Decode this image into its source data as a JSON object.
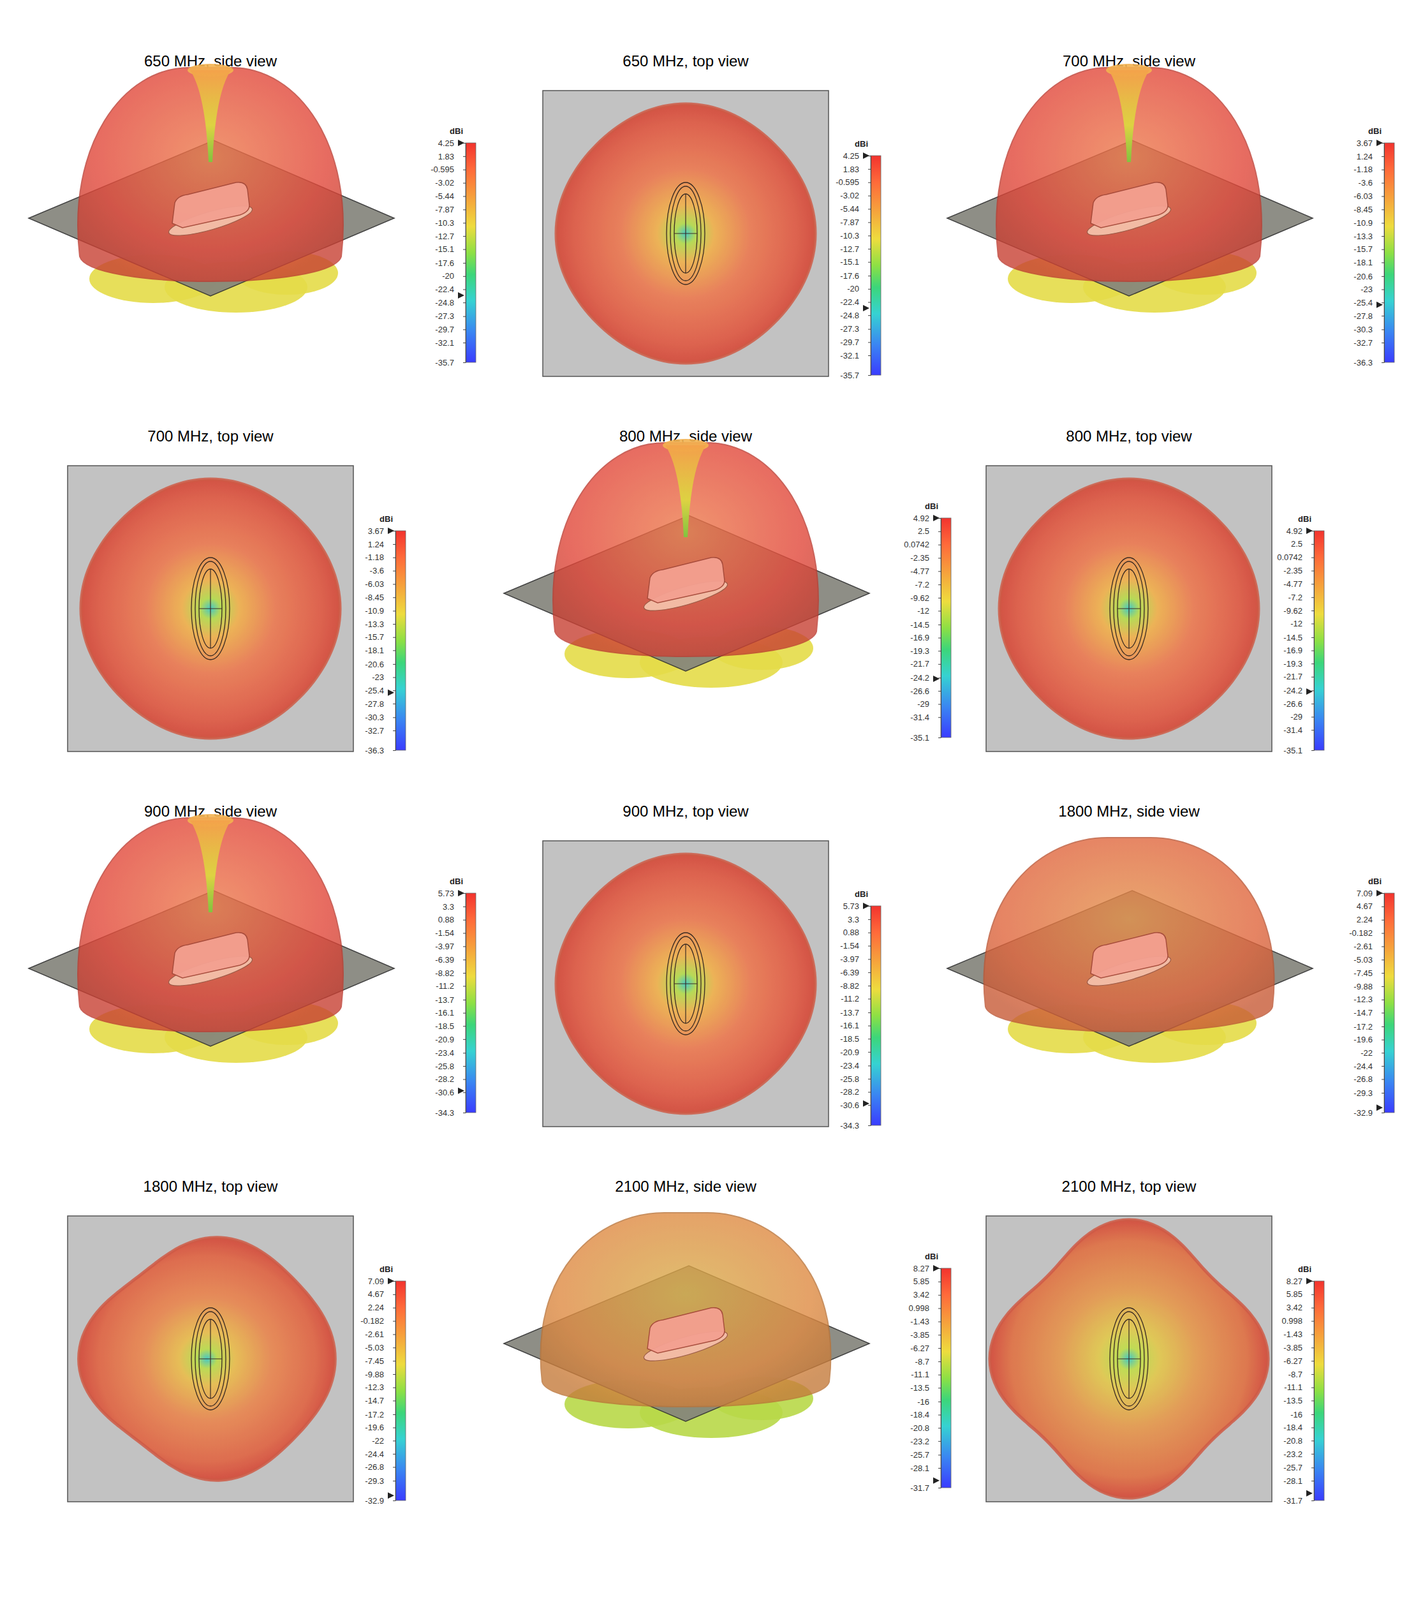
{
  "chart_data": [
    {
      "type": "radiation_3d_side",
      "title": "650 MHz, side view",
      "colorbar_title": "dBi",
      "colorbar_range": [
        -35.7,
        4.25
      ],
      "colorbar_ticks": [
        4.25,
        1.83,
        -0.595,
        -3.02,
        -5.44,
        -7.87,
        -10.3,
        -12.7,
        -15.1,
        -17.6,
        -20,
        -22.4,
        -24.8,
        -27.3,
        -29.7,
        -32.1,
        -35.7
      ],
      "colorbar_markers": [
        4.25,
        -23.5
      ]
    },
    {
      "type": "radiation_3d_top",
      "title": "650 MHz, top view",
      "colorbar_title": "dBi",
      "colorbar_range": [
        -35.7,
        4.25
      ],
      "colorbar_ticks": [
        4.25,
        1.83,
        -0.595,
        -3.02,
        -5.44,
        -7.87,
        -10.3,
        -12.7,
        -15.1,
        -17.6,
        -20,
        -22.4,
        -24.8,
        -27.3,
        -29.7,
        -32.1,
        -35.7
      ],
      "colorbar_markers": [
        4.25,
        -23.5
      ]
    },
    {
      "type": "radiation_3d_side",
      "title": "700 MHz, side view",
      "colorbar_title": "dBi",
      "colorbar_range": [
        -36.3,
        3.67
      ],
      "colorbar_ticks": [
        3.67,
        1.24,
        -1.18,
        -3.6,
        -6.03,
        -8.45,
        -10.9,
        -13.3,
        -15.7,
        -18.1,
        -20.6,
        -23,
        -25.4,
        -27.8,
        -30.3,
        -32.7,
        -36.3
      ],
      "colorbar_markers": [
        3.67,
        -25.8
      ]
    },
    {
      "type": "radiation_3d_top",
      "title": "700 MHz, top view",
      "colorbar_title": "dBi",
      "colorbar_range": [
        -36.3,
        3.67
      ],
      "colorbar_ticks": [
        3.67,
        1.24,
        -1.18,
        -3.6,
        -6.03,
        -8.45,
        -10.9,
        -13.3,
        -15.7,
        -18.1,
        -20.6,
        -23,
        -25.4,
        -27.8,
        -30.3,
        -32.7,
        -36.3
      ],
      "colorbar_markers": [
        3.67,
        -25.8
      ]
    },
    {
      "type": "radiation_3d_side",
      "title": "800 MHz, side view",
      "colorbar_title": "dBi",
      "colorbar_range": [
        -35.1,
        4.92
      ],
      "colorbar_ticks": [
        4.92,
        2.5,
        0.0742,
        -2.35,
        -4.77,
        -7.2,
        -9.62,
        -12,
        -14.5,
        -16.9,
        -19.3,
        -21.7,
        -24.2,
        -26.6,
        -29,
        -31.4,
        -35.1
      ],
      "colorbar_markers": [
        4.92,
        -24.4
      ]
    },
    {
      "type": "radiation_3d_top",
      "title": "800 MHz, top view",
      "colorbar_title": "dBi",
      "colorbar_range": [
        -35.1,
        4.92
      ],
      "colorbar_ticks": [
        4.92,
        2.5,
        0.0742,
        -2.35,
        -4.77,
        -7.2,
        -9.62,
        -12,
        -14.5,
        -16.9,
        -19.3,
        -21.7,
        -24.2,
        -26.6,
        -29,
        -31.4,
        -35.1
      ],
      "colorbar_markers": [
        4.92,
        -24.4
      ]
    },
    {
      "type": "radiation_3d_side",
      "title": "900 MHz, side view",
      "colorbar_title": "dBi",
      "colorbar_range": [
        -34.3,
        5.73
      ],
      "colorbar_ticks": [
        5.73,
        3.3,
        0.88,
        -1.54,
        -3.97,
        -6.39,
        -8.82,
        -11.2,
        -13.7,
        -16.1,
        -18.5,
        -20.9,
        -23.4,
        -25.8,
        -28.2,
        -30.6,
        -34.3
      ],
      "colorbar_markers": [
        5.73,
        -30.3
      ]
    },
    {
      "type": "radiation_3d_top",
      "title": "900 MHz, top view",
      "colorbar_title": "dBi",
      "colorbar_range": [
        -34.3,
        5.73
      ],
      "colorbar_ticks": [
        5.73,
        3.3,
        0.88,
        -1.54,
        -3.97,
        -6.39,
        -8.82,
        -11.2,
        -13.7,
        -16.1,
        -18.5,
        -20.9,
        -23.4,
        -25.8,
        -28.2,
        -30.6,
        -34.3
      ],
      "colorbar_markers": [
        5.73,
        -30.3
      ]
    },
    {
      "type": "radiation_3d_side",
      "title": "1800 MHz, side view",
      "colorbar_title": "dBi",
      "colorbar_range": [
        -32.9,
        7.09
      ],
      "colorbar_ticks": [
        7.09,
        4.67,
        2.24,
        -0.182,
        -2.61,
        -5.03,
        -7.45,
        -9.88,
        -12.3,
        -14.7,
        -17.2,
        -19.6,
        -22,
        -24.4,
        -26.8,
        -29.3,
        -32.9
      ],
      "colorbar_markers": [
        7.09,
        -32
      ]
    },
    {
      "type": "radiation_3d_top",
      "title": "1800 MHz, top view",
      "colorbar_title": "dBi",
      "colorbar_range": [
        -32.9,
        7.09
      ],
      "colorbar_ticks": [
        7.09,
        4.67,
        2.24,
        -0.182,
        -2.61,
        -5.03,
        -7.45,
        -9.88,
        -12.3,
        -14.7,
        -17.2,
        -19.6,
        -22,
        -24.4,
        -26.8,
        -29.3,
        -32.9
      ],
      "colorbar_markers": [
        7.09,
        -32
      ]
    },
    {
      "type": "radiation_3d_side",
      "title": "2100 MHz, side view",
      "colorbar_title": "dBi",
      "colorbar_range": [
        -31.7,
        8.27
      ],
      "colorbar_ticks": [
        8.27,
        5.85,
        3.42,
        0.998,
        -1.43,
        -3.85,
        -6.27,
        -8.7,
        -11.1,
        -13.5,
        -16,
        -18.4,
        -20.8,
        -23.2,
        -25.7,
        -28.1,
        -31.7
      ],
      "colorbar_markers": [
        8.27,
        -30.4
      ]
    },
    {
      "type": "radiation_3d_top",
      "title": "2100 MHz, top view",
      "colorbar_title": "dBi",
      "colorbar_range": [
        -31.7,
        8.27
      ],
      "colorbar_ticks": [
        8.27,
        5.85,
        3.42,
        0.998,
        -1.43,
        -3.85,
        -6.27,
        -8.7,
        -11.1,
        -13.5,
        -16,
        -18.4,
        -20.8,
        -23.2,
        -25.7,
        -28.1,
        -31.7
      ],
      "colorbar_markers": [
        8.27,
        -30.4
      ]
    }
  ]
}
